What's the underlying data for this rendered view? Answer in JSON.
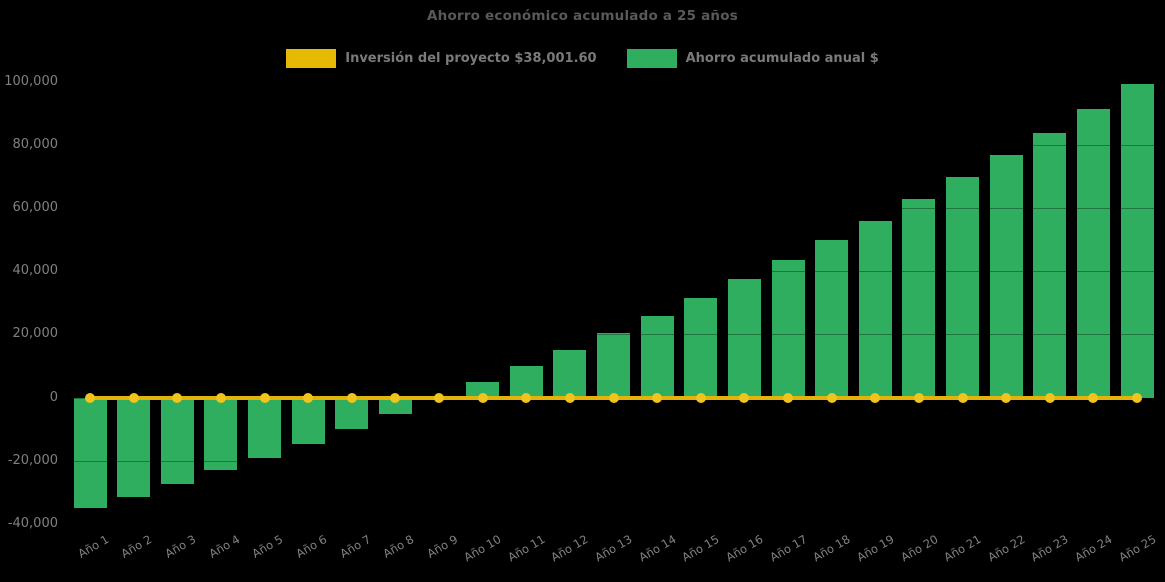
{
  "chart": {
    "title": "Ahorro económico acumulado a 25 años",
    "background_color": "#000000",
    "title_color": "#595959",
    "axis_tick_color": "#808080",
    "legend": [
      {
        "label": "Inversión del proyecto $38,001.60",
        "color": "#E6B905"
      },
      {
        "label": "Ahorro acumulado anual $",
        "color": "#2EAE5E"
      }
    ]
  },
  "chart_data": {
    "type": "bar",
    "title": "Ahorro económico acumulado a 25 años",
    "categories": [
      "Año 1",
      "Año 2",
      "Año 3",
      "Año 4",
      "Año 5",
      "Año 6",
      "Año 7",
      "Año 8",
      "Año 9",
      "Año 10",
      "Año 11",
      "Año 12",
      "Año 13",
      "Año 14",
      "Año 15",
      "Año 16",
      "Año 17",
      "Año 18",
      "Año 19",
      "Año 20",
      "Año 21",
      "Año 22",
      "Año 23",
      "Año 24",
      "Año 25"
    ],
    "series": [
      {
        "name": "Inversión del proyecto $38,001.60",
        "type": "line",
        "color": "#E2B40A",
        "marker_color": "#F0C41D",
        "values": [
          0,
          0,
          0,
          0,
          0,
          0,
          0,
          0,
          0,
          0,
          0,
          0,
          0,
          0,
          0,
          0,
          0,
          0,
          0,
          0,
          0,
          0,
          0,
          0,
          0
        ]
      },
      {
        "name": "Ahorro acumulado anual $",
        "type": "bar",
        "color": "#2EAE5E",
        "values": [
          -35000,
          -31300,
          -27200,
          -23000,
          -19000,
          -14600,
          -9900,
          -5100,
          0,
          4800,
          9900,
          15000,
          20500,
          26000,
          31500,
          37500,
          43600,
          49800,
          56000,
          62900,
          69900,
          76800,
          83800,
          91300,
          99400
        ]
      }
    ],
    "ylim": [
      -40000,
      101500
    ],
    "y_ticks": [
      100000,
      80000,
      60000,
      40000,
      20000,
      0,
      -20000,
      -40000
    ],
    "y_tick_labels": [
      "100,000",
      "80,000",
      "60,000",
      "40,000",
      "20,000",
      "0",
      "-20,000",
      "-40,000"
    ],
    "grid": "horizontal",
    "legend_position": "top",
    "x_label_rotation_deg": 30
  }
}
